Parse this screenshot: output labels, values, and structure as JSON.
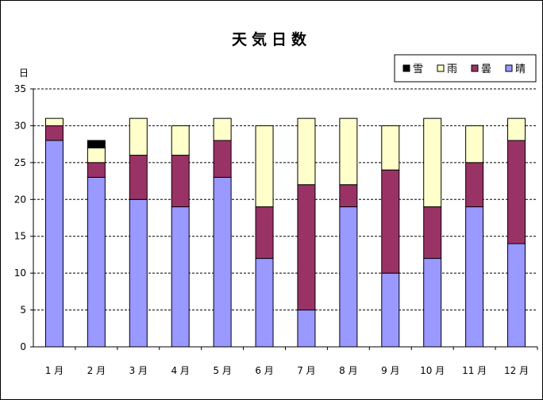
{
  "chart_data": {
    "type": "bar",
    "stacked": true,
    "title": "天気日数",
    "ylabel": "日",
    "xlabel": "",
    "ylim": [
      0,
      35
    ],
    "yticks": [
      0,
      5,
      10,
      15,
      20,
      25,
      30,
      35
    ],
    "grid": "horizontal-dashed",
    "legend_position": "top-right",
    "categories": [
      "1 月",
      "2 月",
      "3 月",
      "4 月",
      "5 月",
      "6 月",
      "7 月",
      "8 月",
      "9 月",
      "10 月",
      "11 月",
      "12 月"
    ],
    "series": [
      {
        "name": "晴",
        "color": "#9999ff",
        "values": [
          28,
          23,
          20,
          19,
          23,
          12,
          5,
          19,
          10,
          12,
          19,
          14
        ]
      },
      {
        "name": "曇",
        "color": "#993366",
        "values": [
          2,
          2,
          6,
          7,
          5,
          7,
          17,
          3,
          14,
          7,
          6,
          14
        ]
      },
      {
        "name": "雨",
        "color": "#ffffcc",
        "values": [
          1,
          2,
          5,
          4,
          3,
          11,
          9,
          9,
          6,
          12,
          5,
          3
        ]
      },
      {
        "name": "雪",
        "color": "#000000",
        "values": [
          0,
          1,
          0,
          0,
          0,
          0,
          0,
          0,
          0,
          0,
          0,
          0
        ]
      }
    ],
    "legend_order": [
      "雪",
      "雨",
      "曇",
      "晴"
    ]
  }
}
